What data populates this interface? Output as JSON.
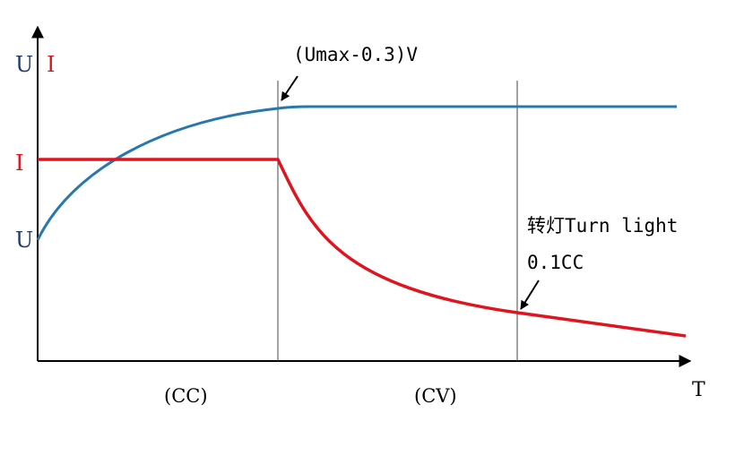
{
  "colors": {
    "voltage": "#2878ae",
    "current": "#e0141e",
    "axis": "#000000",
    "label_u": "#1f3a6e"
  },
  "axes": {
    "y_label_u": "U",
    "y_label_i": "I",
    "x_label": "T"
  },
  "levels": {
    "current_label": "I",
    "voltage_start_label": "U"
  },
  "annotations": {
    "cv_threshold": "(Umax-0.3)V",
    "turn_light": "转灯Turn light",
    "turn_light_value": "0.1CC"
  },
  "phases": {
    "cc": "(CC)",
    "cv": "(CV)"
  }
}
